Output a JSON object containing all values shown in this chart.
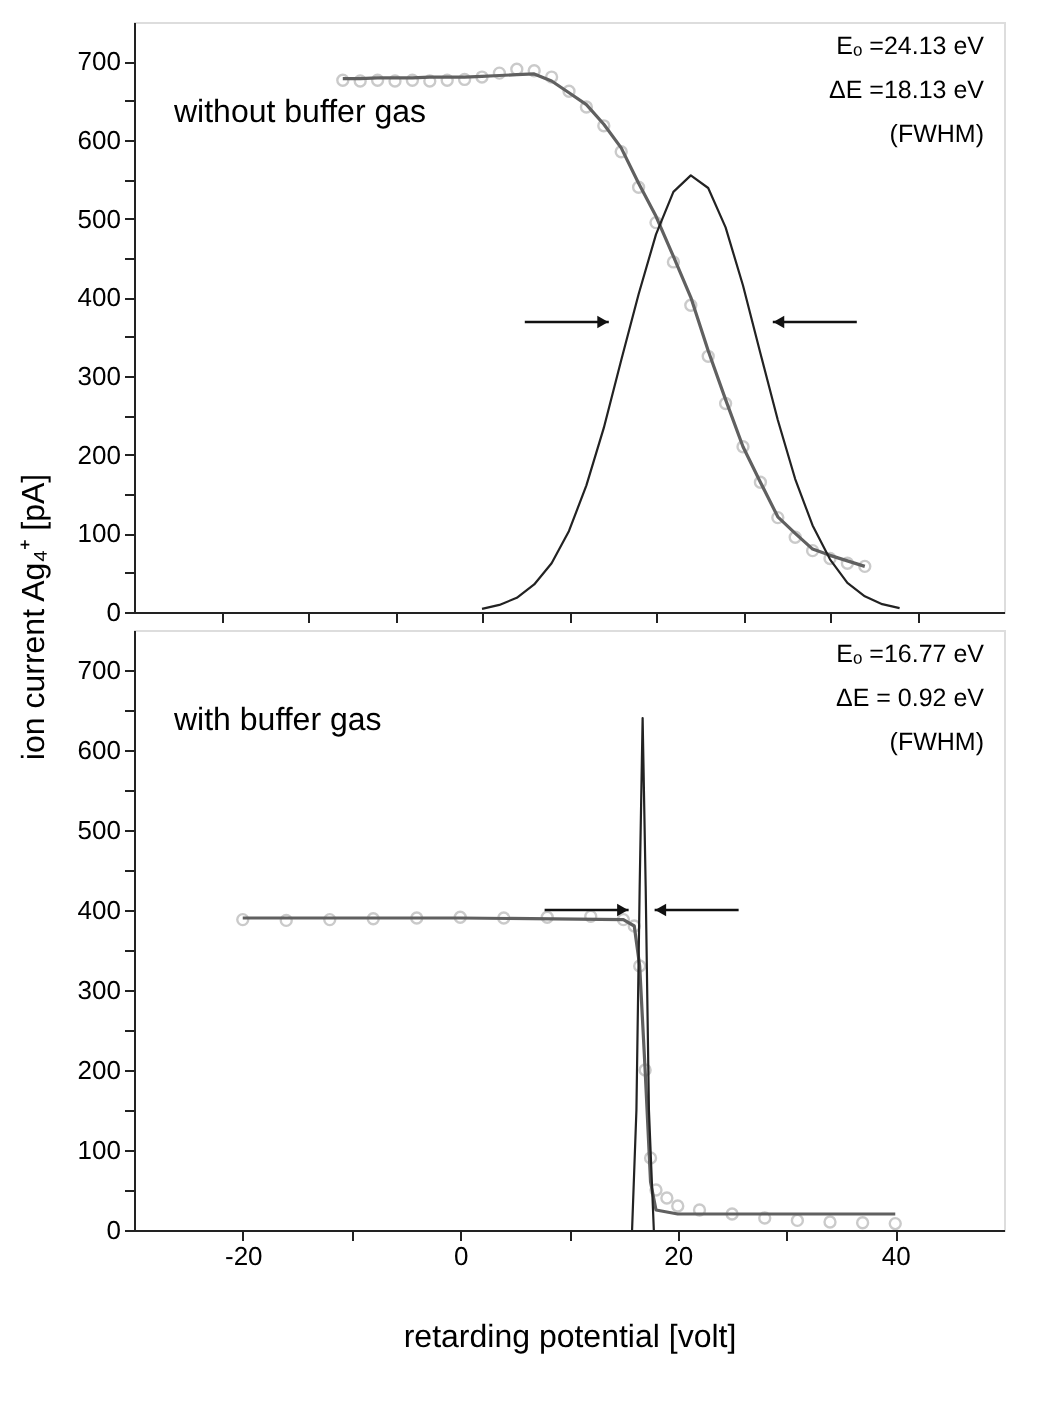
{
  "chart_data": [
    {
      "type": "line",
      "ylabel": "ion current Ag₄⁺ [pA]",
      "categories": [
        null,
        null,
        null,
        null,
        null,
        null,
        null,
        null,
        null,
        null,
        null,
        null,
        null,
        null,
        null,
        null,
        null,
        null,
        null,
        null,
        null,
        null,
        null,
        null,
        null,
        null,
        null,
        null,
        null,
        null,
        null,
        null,
        null,
        null,
        null,
        null,
        null,
        null,
        null,
        null,
        null,
        null,
        null,
        null,
        null,
        null,
        null,
        null,
        null,
        null,
        null
      ],
      "ylim": [
        0,
        750
      ],
      "yticks": [
        0,
        {
          "value": 50,
          "label": null
        },
        100,
        {
          "value": 150,
          "label": null
        },
        200,
        {
          "value": 250,
          "label": null
        },
        300,
        {
          "value": 350,
          "label": null
        },
        400,
        {
          "value": 450,
          "label": null
        },
        500,
        {
          "value": 550,
          "label": null
        },
        600,
        {
          "value": 650,
          "label": null
        },
        700
      ],
      "tick_labels": "y",
      "annotations": [
        "without buffer gas",
        "Eₒ =24.13 eV",
        "ΔE =18.13 eV",
        "(FWHM)"
      ],
      "series": [
        {
          "type": "scatter",
          "marker": "circle",
          "color": "#b4b4b4",
          "values": [
            null,
            null,
            null,
            null,
            null,
            null,
            null,
            null,
            null,
            null,
            null,
            null,
            676,
            675,
            676,
            675,
            676,
            675,
            676,
            677,
            680,
            685,
            690,
            688,
            680,
            662,
            642,
            618,
            585,
            540,
            495,
            445,
            390,
            325,
            265,
            210,
            165,
            120,
            95,
            78,
            68,
            62,
            58,
            null,
            null,
            null,
            null,
            null,
            null,
            null,
            null
          ]
        },
        {
          "type": "line",
          "color": "#606060",
          "values": [
            null,
            null,
            null,
            null,
            null,
            null,
            null,
            null,
            null,
            null,
            null,
            null,
            678,
            678,
            679,
            679,
            679,
            680,
            680,
            680,
            681,
            682,
            683,
            684,
            675,
            660,
            645,
            620,
            590,
            545,
            503,
            452,
            400,
            332,
            270,
            210,
            165,
            121,
            100,
            80,
            72,
            65,
            58,
            null,
            null,
            null,
            null,
            null,
            null,
            null,
            null
          ]
        },
        {
          "type": "line",
          "color": "#222222",
          "values": [
            null,
            null,
            null,
            null,
            null,
            null,
            null,
            null,
            null,
            null,
            null,
            null,
            null,
            null,
            null,
            null,
            null,
            null,
            null,
            null,
            4,
            9,
            18,
            35,
            62,
            103,
            161,
            234,
            320,
            404,
            480,
            534,
            555,
            539,
            489,
            415,
            329,
            244,
            169,
            110,
            67,
            37,
            20,
            10,
            5,
            null,
            null,
            null,
            null,
            null,
            null
          ]
        }
      ]
    },
    {
      "type": "line",
      "xlabel": "retarding potential [volt]",
      "xlim": [
        -30,
        50
      ],
      "xticks": [
        -20,
        {
          "value": -10,
          "label": null
        },
        0,
        {
          "value": 10,
          "label": null
        },
        20,
        {
          "value": 30,
          "label": null
        },
        40
      ],
      "ylim": [
        0,
        750
      ],
      "yticks": [
        0,
        {
          "value": 50,
          "label": null
        },
        100,
        {
          "value": 150,
          "label": null
        },
        200,
        {
          "value": 250,
          "label": null
        },
        300,
        {
          "value": 350,
          "label": null
        },
        400,
        {
          "value": 450,
          "label": null
        },
        500,
        {
          "value": 550,
          "label": null
        },
        600,
        {
          "value": 650,
          "label": null
        },
        700
      ],
      "annotations": [
        "with buffer gas",
        "Eₒ =16.77 eV",
        "ΔE =  0.92 eV",
        "(FWHM)"
      ],
      "series": [
        {
          "type": "scatter",
          "marker": "circle",
          "color": "#b4b4b4",
          "x": [
            -20,
            -16,
            -12,
            -8,
            -4,
            0,
            4,
            8,
            12,
            15,
            16,
            16.5,
            17,
            17.5,
            18,
            19,
            20,
            22,
            25,
            28,
            31,
            34,
            37,
            40
          ],
          "values": [
            388,
            387,
            388,
            389,
            390,
            391,
            390,
            391,
            392,
            388,
            380,
            330,
            200,
            90,
            50,
            40,
            30,
            25,
            20,
            15,
            12,
            10,
            9,
            8
          ]
        },
        {
          "type": "line",
          "color": "#606060",
          "x": [
            -20,
            0,
            15,
            16,
            16.5,
            17,
            17.5,
            18,
            20,
            30,
            40
          ],
          "values": [
            390,
            390,
            388,
            380,
            330,
            200,
            60,
            25,
            20,
            20,
            20
          ]
        },
        {
          "type": "line",
          "color": "#222222",
          "x": [
            15.8,
            16.2,
            16.5,
            16.77,
            17.05,
            17.35,
            17.8
          ],
          "values": [
            0,
            150,
            430,
            640,
            430,
            150,
            0
          ]
        }
      ]
    }
  ]
}
